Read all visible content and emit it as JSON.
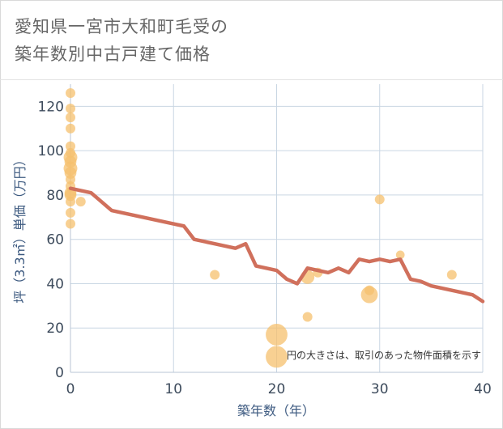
{
  "title_line1": "愛知県一宮市大和町毛受の",
  "title_line2": "築年数別中古戸建て価格",
  "note": "円の大きさは、取引のあった物件面積を示す",
  "colors": {
    "bubble": "#f5c06e",
    "line": "#d0705c",
    "grid": "#c9d6e3",
    "axis_text": "#3d4b5c"
  },
  "chart_data": {
    "type": "scatter",
    "xlabel": "築年数（年）",
    "ylabel": "坪（3.3㎡）単価（万円）",
    "xlim": [
      0,
      40
    ],
    "ylim": [
      0,
      130
    ],
    "xticks": [
      0,
      10,
      20,
      30,
      40
    ],
    "yticks": [
      0,
      20,
      40,
      60,
      80,
      100,
      120
    ],
    "grid": true,
    "bubbles": [
      {
        "x": 0,
        "y": 126,
        "size": 1
      },
      {
        "x": 0,
        "y": 119,
        "size": 1
      },
      {
        "x": 0,
        "y": 115,
        "size": 1
      },
      {
        "x": 0,
        "y": 110,
        "size": 1
      },
      {
        "x": 0,
        "y": 102,
        "size": 1
      },
      {
        "x": 0,
        "y": 99,
        "size": 1
      },
      {
        "x": 0,
        "y": 97,
        "size": 2
      },
      {
        "x": 0,
        "y": 95,
        "size": 1.5
      },
      {
        "x": 0,
        "y": 92,
        "size": 2
      },
      {
        "x": 0,
        "y": 90,
        "size": 1.5
      },
      {
        "x": 0,
        "y": 87,
        "size": 1
      },
      {
        "x": 0,
        "y": 84,
        "size": 1
      },
      {
        "x": 0,
        "y": 81,
        "size": 1.5
      },
      {
        "x": 0,
        "y": 80,
        "size": 1.5
      },
      {
        "x": 0,
        "y": 77,
        "size": 1
      },
      {
        "x": 0,
        "y": 72,
        "size": 1
      },
      {
        "x": 0,
        "y": 67,
        "size": 1
      },
      {
        "x": 1,
        "y": 77,
        "size": 1
      },
      {
        "x": 14,
        "y": 44,
        "size": 1
      },
      {
        "x": 20,
        "y": 17,
        "size": 5
      },
      {
        "x": 20,
        "y": 7,
        "size": 5
      },
      {
        "x": 23,
        "y": 43,
        "size": 2
      },
      {
        "x": 23,
        "y": 25,
        "size": 1
      },
      {
        "x": 24,
        "y": 45,
        "size": 1
      },
      {
        "x": 29,
        "y": 35,
        "size": 3
      },
      {
        "x": 29,
        "y": 37,
        "size": 1
      },
      {
        "x": 30,
        "y": 78,
        "size": 1
      },
      {
        "x": 32,
        "y": 53,
        "size": 0.8
      },
      {
        "x": 37,
        "y": 44,
        "size": 1
      }
    ],
    "series": [
      {
        "type": "line",
        "x": [
          0,
          2,
          4,
          6,
          8,
          10,
          11,
          12,
          14,
          16,
          17,
          18,
          20,
          21,
          22,
          23,
          24,
          25,
          26,
          27,
          28,
          29,
          30,
          31,
          32,
          33,
          34,
          35,
          36,
          37,
          38,
          39,
          40
        ],
        "y": [
          83,
          81,
          73,
          71,
          69,
          67,
          66,
          60,
          58,
          56,
          58,
          48,
          46,
          42,
          40,
          47,
          46,
          45,
          47,
          45,
          51,
          50,
          51,
          50,
          51,
          42,
          41,
          39,
          38,
          37,
          36,
          35,
          32
        ]
      }
    ]
  }
}
